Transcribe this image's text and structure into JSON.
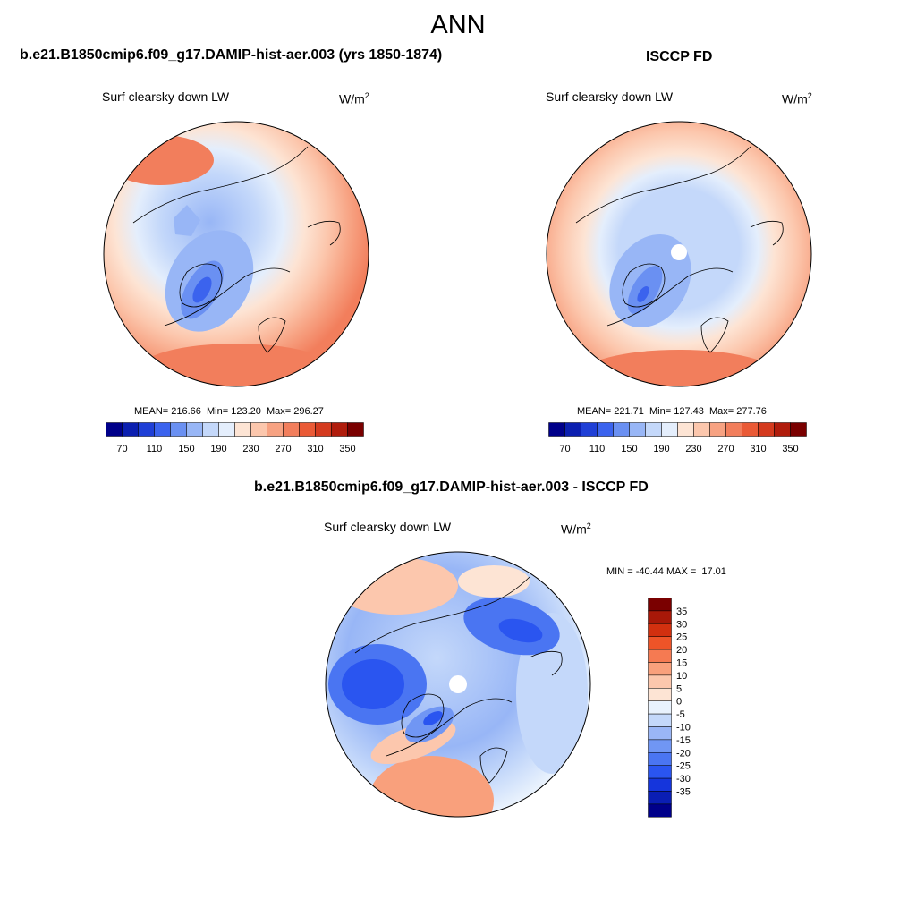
{
  "main_title": "ANN",
  "panel1": {
    "case_title": "b.e21.B1850cmip6.f09_g17.DAMIP-hist-aer.003 (yrs 1850-1874)",
    "variable": "Surf clearsky down LW",
    "units_base": "W/m",
    "units_exp": "2",
    "stats": "MEAN= 216.66  Min= 123.20  Max= 296.27"
  },
  "panel2": {
    "case_title": "ISCCP FD",
    "variable": "Surf clearsky down LW",
    "units_base": "W/m",
    "units_exp": "2",
    "stats": "MEAN= 221.71  Min= 127.43  Max= 277.76"
  },
  "panel3": {
    "case_title": "b.e21.B1850cmip6.f09_g17.DAMIP-hist-aer.003 - ISCCP FD",
    "variable": "Surf clearsky down LW",
    "units_base": "W/m",
    "units_exp": "2",
    "stats": "MIN = -40.44 MAX =  17.01"
  },
  "colorbar_abs": {
    "colors": [
      "#00008a",
      "#0b1fb0",
      "#1f3fd6",
      "#3b63ee",
      "#6a90f2",
      "#98b6f6",
      "#c4d8fa",
      "#e4eefc",
      "#fde4d4",
      "#fcc7ad",
      "#f7a282",
      "#f27e5c",
      "#ea5a36",
      "#d43a1e",
      "#b01c0c",
      "#7a0000"
    ],
    "tick_labels": [
      "70",
      "110",
      "150",
      "190",
      "230",
      "270",
      "310",
      "350"
    ]
  },
  "colorbar_diff": {
    "colors": [
      "#00008a",
      "#0a1eb4",
      "#1535dc",
      "#2a55f0",
      "#4a75f2",
      "#7096f4",
      "#9ab6f6",
      "#c4d8fa",
      "#e9f2fd",
      "#fde4d4",
      "#fcc7ad",
      "#f9a07c",
      "#f57a52",
      "#ee5428",
      "#d2300f",
      "#a81808",
      "#7a0000"
    ],
    "tick_labels": [
      "35",
      "30",
      "25",
      "20",
      "15",
      "10",
      "5",
      "0",
      "-5",
      "-10",
      "-15",
      "-20",
      "-25",
      "-30",
      "-35"
    ]
  }
}
